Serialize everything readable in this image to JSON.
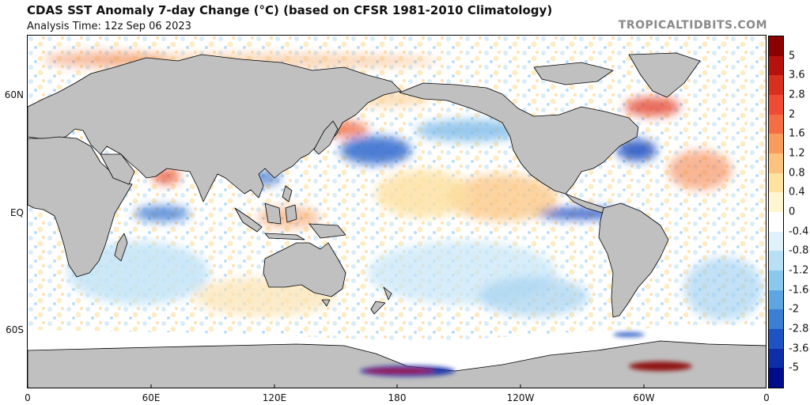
{
  "header": {
    "title": "CDAS SST Anomaly 7-day Change (°C) (based on CFSR 1981-2010 Climatology)",
    "subtitle": "Analysis Time: 12z Sep 06 2023",
    "brand": "TROPICALTIDBITS.COM"
  },
  "map": {
    "projection": "equirectangular",
    "center_longitude": "180",
    "land_color": "#c0c0c0",
    "border_color": "#000000",
    "lat_labels": [
      "60N",
      "EQ",
      "60S"
    ],
    "lon_labels": [
      "0",
      "60E",
      "120E",
      "180",
      "120W",
      "60W",
      "0"
    ]
  },
  "colorbar": {
    "labels": [
      "5",
      "3.6",
      "2.8",
      "2",
      "1.6",
      "1.2",
      "0.8",
      "0.4",
      "0",
      "-0.4",
      "-0.8",
      "-1.2",
      "-1.6",
      "-2",
      "-2.8",
      "-3.6",
      "-5"
    ],
    "colors": [
      "#8b0000",
      "#b5120e",
      "#d7301f",
      "#ef4a34",
      "#f46d43",
      "#f99b5a",
      "#fdc27d",
      "#fde2a0",
      "#fff6cf",
      "#ffffff",
      "#dff1fb",
      "#b8e0f5",
      "#8cc7ee",
      "#5ea6e2",
      "#3a7fd4",
      "#1f52c2",
      "#0d2ea8",
      "#000c8a"
    ]
  }
}
